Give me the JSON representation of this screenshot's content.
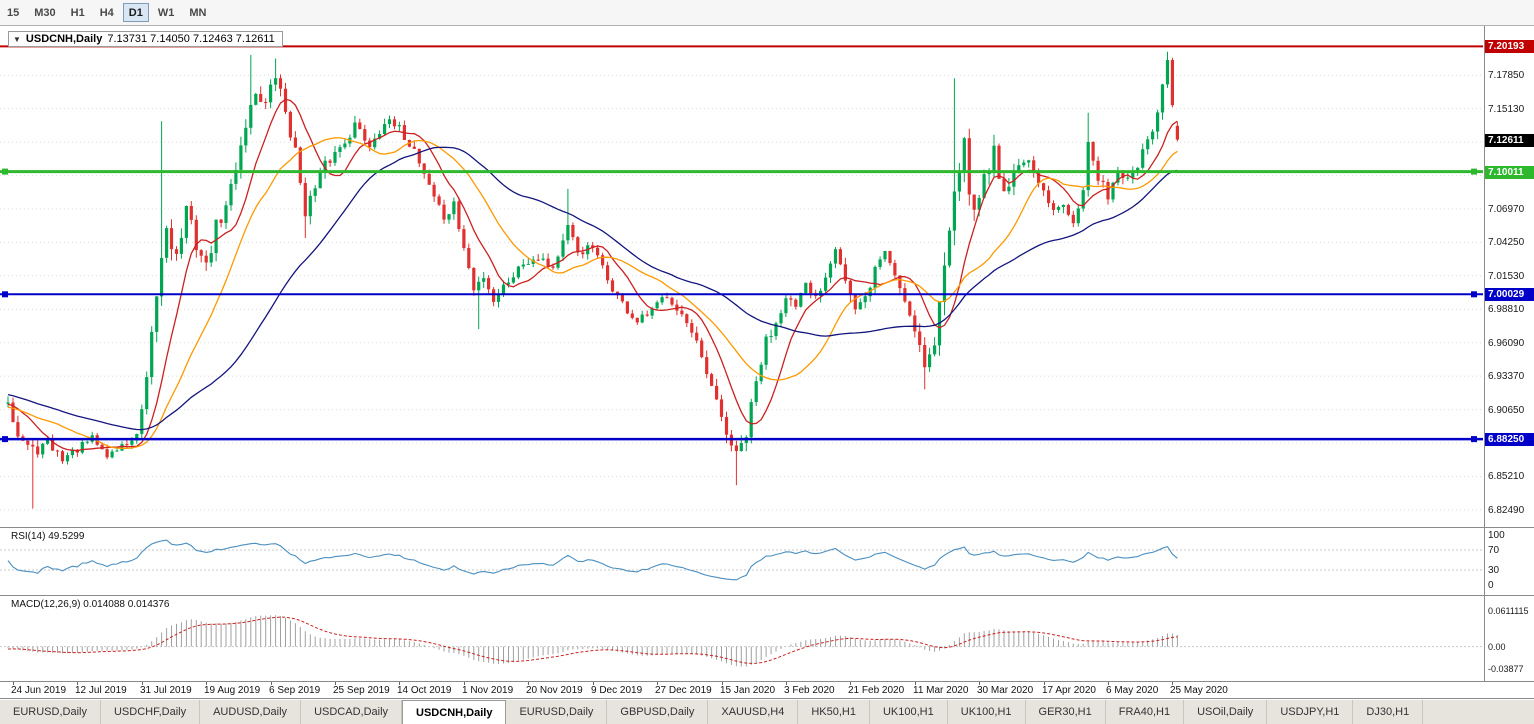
{
  "toolbar": {
    "timeframes": [
      {
        "label": "15",
        "active": false
      },
      {
        "label": "M30",
        "active": false
      },
      {
        "label": "H1",
        "active": false
      },
      {
        "label": "H4",
        "active": false
      },
      {
        "label": "D1",
        "active": true
      },
      {
        "label": "W1",
        "active": false
      },
      {
        "label": "MN",
        "active": false
      }
    ]
  },
  "chart_title": {
    "symbol": "USDCNH,Daily",
    "ohlc": "7.13731 7.14050 7.12463 7.12611"
  },
  "chart_data": {
    "type": "candlestick",
    "symbol": "USDCNH",
    "timeframe": "Daily",
    "candle_count": 237,
    "seed": 42,
    "up_color": "#00a651",
    "down_color": "#e03030",
    "last_candle": {
      "open": 7.13731,
      "high": 7.1405,
      "low": 7.12463,
      "close": 7.12611
    },
    "price_axis": {
      "top": 7.2185,
      "bottom": 6.811,
      "tick_start": 7.1785,
      "tick_step": 0.0272,
      "tick_count": 14,
      "decimals": 5
    },
    "x_labels": [
      "24 Jun 2019",
      "12 Jul 2019",
      "31 Jul 2019",
      "19 Aug 2019",
      "6 Sep 2019",
      "25 Sep 2019",
      "14 Oct 2019",
      "1 Nov 2019",
      "20 Nov 2019",
      "9 Dec 2019",
      "27 Dec 2019",
      "15 Jan 2020",
      "3 Feb 2020",
      "21 Feb 2020",
      "11 Mar 2020",
      "30 Mar 2020",
      "17 Apr 2020",
      "6 May 2020",
      "25 May 2020"
    ],
    "x_label_first_index": 1,
    "x_label_step": 13,
    "pre_history": [
      [
        -60,
        6.952,
        0.004
      ],
      [
        -35,
        6.932,
        0.004
      ],
      [
        -10,
        6.902,
        0.005
      ]
    ],
    "anchors": [
      [
        0,
        6.916,
        0.006
      ],
      [
        2,
        6.886,
        0.006
      ],
      [
        5,
        6.872,
        0.007
      ],
      [
        8,
        6.879,
        0.005
      ],
      [
        11,
        6.867,
        0.005
      ],
      [
        14,
        6.874,
        0.004
      ],
      [
        17,
        6.883,
        0.004
      ],
      [
        20,
        6.869,
        0.005
      ],
      [
        23,
        6.877,
        0.004
      ],
      [
        26,
        6.884,
        0.005
      ],
      [
        28,
        6.925,
        0.01
      ],
      [
        30,
        7.0,
        0.013
      ],
      [
        32,
        7.058,
        0.012
      ],
      [
        34,
        7.03,
        0.01
      ],
      [
        36,
        7.068,
        0.009
      ],
      [
        38,
        7.042,
        0.009
      ],
      [
        40,
        7.022,
        0.008
      ],
      [
        42,
        7.055,
        0.008
      ],
      [
        44,
        7.07,
        0.008
      ],
      [
        46,
        7.105,
        0.008
      ],
      [
        48,
        7.14,
        0.008
      ],
      [
        50,
        7.165,
        0.007
      ],
      [
        52,
        7.155,
        0.007
      ],
      [
        54,
        7.178,
        0.007
      ],
      [
        56,
        7.15,
        0.008
      ],
      [
        58,
        7.115,
        0.008
      ],
      [
        60,
        7.07,
        0.008
      ],
      [
        62,
        7.085,
        0.007
      ],
      [
        64,
        7.105,
        0.006
      ],
      [
        67,
        7.12,
        0.006
      ],
      [
        70,
        7.138,
        0.006
      ],
      [
        73,
        7.122,
        0.006
      ],
      [
        76,
        7.141,
        0.005
      ],
      [
        79,
        7.134,
        0.005
      ],
      [
        82,
        7.118,
        0.006
      ],
      [
        85,
        7.09,
        0.006
      ],
      [
        88,
        7.062,
        0.006
      ],
      [
        90,
        7.072,
        0.006
      ],
      [
        92,
        7.038,
        0.006
      ],
      [
        94,
        7.003,
        0.007
      ],
      [
        96,
        7.016,
        0.006
      ],
      [
        98,
        6.996,
        0.006
      ],
      [
        101,
        7.012,
        0.005
      ],
      [
        104,
        7.026,
        0.005
      ],
      [
        107,
        7.032,
        0.005
      ],
      [
        110,
        7.022,
        0.005
      ],
      [
        113,
        7.052,
        0.007
      ],
      [
        115,
        7.035,
        0.006
      ],
      [
        118,
        7.038,
        0.005
      ],
      [
        121,
        7.012,
        0.005
      ],
      [
        124,
        6.992,
        0.005
      ],
      [
        127,
        6.977,
        0.005
      ],
      [
        130,
        6.986,
        0.005
      ],
      [
        133,
        7.001,
        0.005
      ],
      [
        136,
        6.984,
        0.005
      ],
      [
        139,
        6.958,
        0.006
      ],
      [
        142,
        6.922,
        0.007
      ],
      [
        145,
        6.888,
        0.008
      ],
      [
        147,
        6.868,
        0.008
      ],
      [
        149,
        6.886,
        0.008
      ],
      [
        151,
        6.928,
        0.008
      ],
      [
        153,
        6.962,
        0.007
      ],
      [
        155,
        6.978,
        0.006
      ],
      [
        157,
        7.001,
        0.006
      ],
      [
        159,
        6.988,
        0.006
      ],
      [
        161,
        7.006,
        0.006
      ],
      [
        163,
        6.997,
        0.006
      ],
      [
        165,
        7.016,
        0.006
      ],
      [
        167,
        7.042,
        0.007
      ],
      [
        169,
        7.012,
        0.007
      ],
      [
        171,
        6.986,
        0.006
      ],
      [
        173,
        6.996,
        0.006
      ],
      [
        175,
        7.021,
        0.006
      ],
      [
        177,
        7.036,
        0.006
      ],
      [
        179,
        7.016,
        0.006
      ],
      [
        181,
        6.996,
        0.006
      ],
      [
        183,
        6.974,
        0.007
      ],
      [
        185,
        6.944,
        0.008
      ],
      [
        187,
        6.958,
        0.009
      ],
      [
        189,
        7.025,
        0.013
      ],
      [
        191,
        7.095,
        0.014
      ],
      [
        193,
        7.118,
        0.013
      ],
      [
        195,
        7.062,
        0.012
      ],
      [
        197,
        7.098,
        0.011
      ],
      [
        199,
        7.116,
        0.01
      ],
      [
        201,
        7.086,
        0.009
      ],
      [
        203,
        7.097,
        0.008
      ],
      [
        205,
        7.112,
        0.007
      ],
      [
        207,
        7.096,
        0.007
      ],
      [
        209,
        7.082,
        0.006
      ],
      [
        211,
        7.066,
        0.006
      ],
      [
        213,
        7.076,
        0.006
      ],
      [
        215,
        7.062,
        0.006
      ],
      [
        217,
        7.088,
        0.008
      ],
      [
        218,
        7.122,
        0.008
      ],
      [
        220,
        7.092,
        0.006
      ],
      [
        222,
        7.082,
        0.006
      ],
      [
        224,
        7.102,
        0.006
      ],
      [
        226,
        7.092,
        0.006
      ],
      [
        228,
        7.106,
        0.006
      ],
      [
        230,
        7.122,
        0.006
      ],
      [
        232,
        7.148,
        0.007
      ],
      [
        234,
        7.186,
        0.007
      ],
      [
        235,
        7.152,
        0.007
      ],
      [
        236,
        7.12611,
        0.004
      ]
    ],
    "wick_events": [
      {
        "i": 5,
        "low": 6.826
      },
      {
        "i": 31,
        "high": 7.141
      },
      {
        "i": 49,
        "high": 7.195
      },
      {
        "i": 54,
        "high": 7.192
      },
      {
        "i": 60,
        "low": 7.046
      },
      {
        "i": 95,
        "low": 6.972
      },
      {
        "i": 113,
        "high": 7.086
      },
      {
        "i": 147,
        "low": 6.845
      },
      {
        "i": 185,
        "low": 6.923
      },
      {
        "i": 191,
        "high": 7.176
      },
      {
        "i": 218,
        "high": 7.148
      },
      {
        "i": 234,
        "high": 7.1975
      }
    ],
    "moving_averages": [
      {
        "period": 9,
        "color": "#cc2020"
      },
      {
        "period": 20,
        "color": "#ff9900"
      },
      {
        "period": 45,
        "color": "#15157e"
      }
    ],
    "levels": [
      {
        "price": 7.20193,
        "label": "7.20193",
        "color": "#c00000",
        "width": 2,
        "handles": false
      },
      {
        "price": 7.10011,
        "label": "7.10011",
        "color": "#2db82d",
        "width": 3,
        "handles": true
      },
      {
        "price": 7.00029,
        "label": "7.00029",
        "color": "#0000c8",
        "width": 2,
        "handles": true
      },
      {
        "price": 6.8825,
        "label": "6.88250",
        "color": "#0000c8",
        "width": 2.5,
        "handles": true
      }
    ],
    "current_price": {
      "value": 7.12611,
      "label": "7.12611",
      "bg": "#000000"
    },
    "rsi": {
      "label": "RSI(14) 49.5299",
      "period": 14,
      "value": "49.5299",
      "scale": [
        100,
        70,
        30,
        0
      ],
      "guide_levels": [
        70,
        30
      ],
      "color": "#4a8fc0"
    },
    "macd": {
      "label": "MACD(12,26,9) 0.014088 0.014376",
      "fast": 12,
      "slow": 26,
      "signal": 9,
      "values": [
        "0.014088",
        "0.014376"
      ],
      "scale_labels": [
        "0.0611115",
        "0.00",
        "-0.03877"
      ],
      "scale_values": [
        0.0611115,
        0,
        -0.03877
      ],
      "hist_color": "#a0a0a0",
      "signal_color": "#cc2020"
    }
  },
  "tabs": {
    "items": [
      {
        "label": "EURUSD,Daily",
        "active": false
      },
      {
        "label": "USDCHF,Daily",
        "active": false
      },
      {
        "label": "AUDUSD,Daily",
        "active": false
      },
      {
        "label": "USDCAD,Daily",
        "active": false
      },
      {
        "label": "USDCNH,Daily",
        "active": true
      },
      {
        "label": "EURUSD,Daily",
        "active": false
      },
      {
        "label": "GBPUSD,Daily",
        "active": false
      },
      {
        "label": "XAUUSD,H4",
        "active": false
      },
      {
        "label": "HK50,H1",
        "active": false
      },
      {
        "label": "UK100,H1",
        "active": false
      },
      {
        "label": "UK100,H1",
        "active": false
      },
      {
        "label": "GER30,H1",
        "active": false
      },
      {
        "label": "FRA40,H1",
        "active": false
      },
      {
        "label": "USOil,Daily",
        "active": false
      },
      {
        "label": "USDJPY,H1",
        "active": false
      },
      {
        "label": "DJ30,H1",
        "active": false
      }
    ]
  }
}
